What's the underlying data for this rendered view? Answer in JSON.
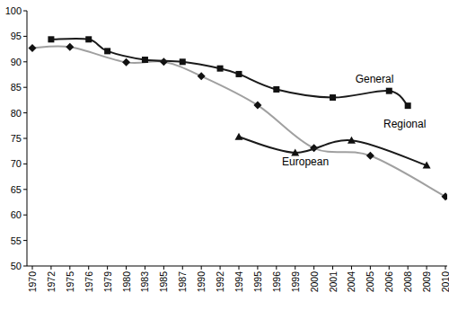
{
  "chart_data": {
    "type": "line",
    "categories": [
      "1970",
      "1972",
      "1975",
      "1976",
      "1979",
      "1980",
      "1983",
      "1985",
      "1987",
      "1990",
      "1992",
      "1994",
      "1995",
      "1996",
      "1999",
      "2000",
      "2001",
      "2004",
      "2005",
      "2006",
      "2008",
      "2009",
      "2010"
    ],
    "ylim": [
      50,
      100
    ],
    "yticks": [
      50,
      55,
      60,
      65,
      70,
      75,
      80,
      85,
      90,
      95,
      100
    ],
    "grid": false,
    "series": [
      {
        "name": "General",
        "color": "#1a1a1a",
        "marker": "square",
        "line_style": "solid",
        "x": [
          "1972",
          "1976",
          "1979",
          "1983",
          "1987",
          "1992",
          "1994",
          "1996",
          "2001",
          "2006",
          "2008"
        ],
        "values": [
          94.4,
          94.4,
          92.1,
          90.4,
          90.0,
          88.7,
          87.6,
          84.6,
          83.0,
          84.3,
          81.4
        ]
      },
      {
        "name": "Regional",
        "color": "#a0a0a0",
        "marker": "diamond",
        "line_style": "solid",
        "x": [
          "1970",
          "1975",
          "1980",
          "1985",
          "1990",
          "1995",
          "2000",
          "2005",
          "2010"
        ],
        "values": [
          92.7,
          92.9,
          89.9,
          90.0,
          87.2,
          81.5,
          73.1,
          71.6,
          63.6
        ]
      },
      {
        "name": "European",
        "color": "#1a1a1a",
        "marker": "triangle",
        "line_style": "solid",
        "x": [
          "1994",
          "1999",
          "2004",
          "2009"
        ],
        "values": [
          75.3,
          72.2,
          74.6,
          69.7
        ]
      }
    ]
  }
}
